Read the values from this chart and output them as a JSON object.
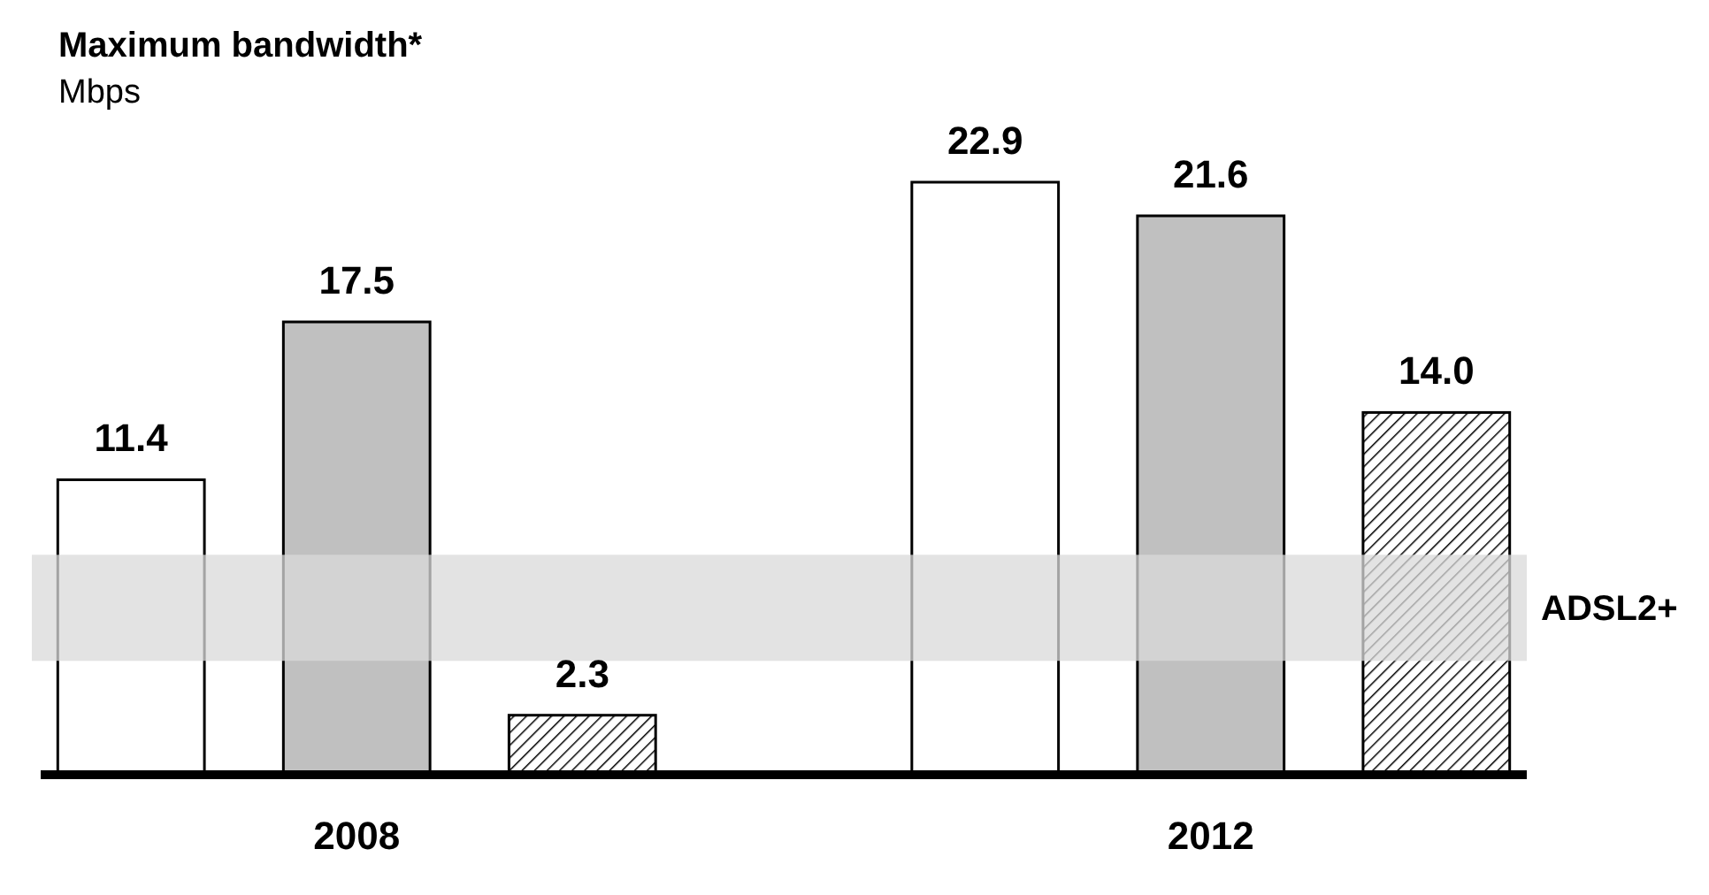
{
  "chart_data": {
    "type": "bar",
    "title": "Maximum bandwidth*",
    "subtitle": "Mbps",
    "categories": [
      "2008",
      "2012"
    ],
    "series": [
      {
        "color": "#ffffff",
        "values": [
          11.4,
          22.9
        ],
        "value_labels": [
          "11.4",
          "22.9"
        ]
      },
      {
        "color": "#c0c0c0",
        "values": [
          17.5,
          21.6
        ],
        "value_labels": [
          "17.5",
          "21.6"
        ]
      },
      {
        "color": "#000000",
        "values": [
          2.3,
          14.0
        ],
        "value_labels": [
          "2.3",
          "14.0"
        ]
      }
    ],
    "bands": [
      {
        "axis": "y",
        "from": 4.4,
        "to": 8.5,
        "label": "ADSL2+",
        "color": "#d9d9d9"
      }
    ]
  }
}
